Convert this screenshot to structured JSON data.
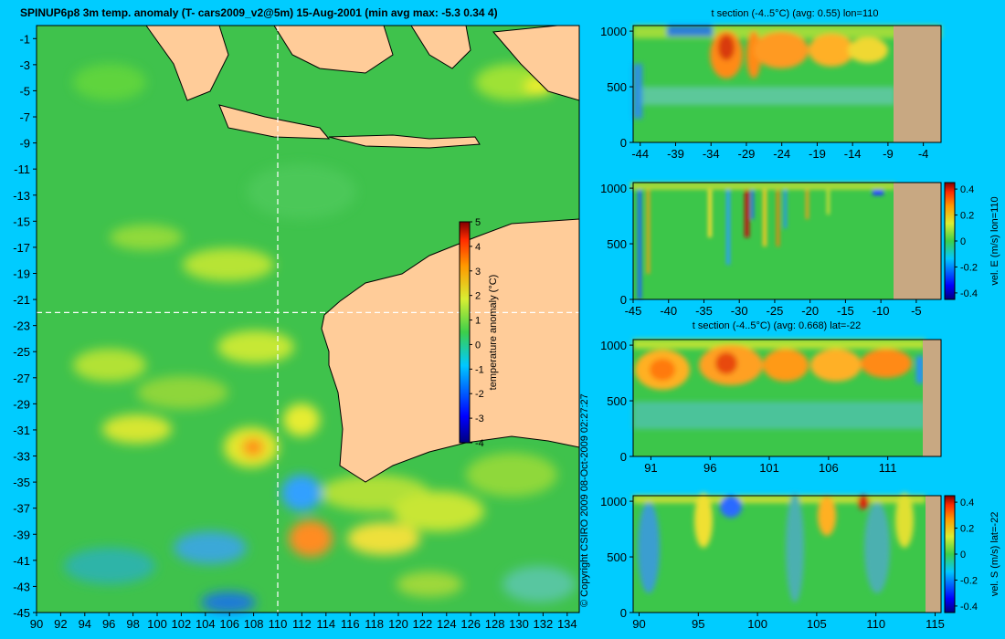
{
  "chart_data": [
    {
      "type": "heatmap",
      "title": "SPINUP6p8 3m temp. anomaly (T- cars2009_v2@5m) 15-Aug-2001 (min avg max: -5.3 0.34 4)",
      "x_ticks": [
        "90",
        "92",
        "94",
        "96",
        "98",
        "100",
        "102",
        "104",
        "106",
        "108",
        "110",
        "112",
        "114",
        "116",
        "118",
        "120",
        "122",
        "124",
        "126",
        "128",
        "130",
        "132",
        "134"
      ],
      "y_ticks": [
        "-1",
        "-3",
        "-5",
        "-7",
        "-9",
        "-11",
        "-13",
        "-15",
        "-17",
        "-19",
        "-21",
        "-23",
        "-25",
        "-27",
        "-29",
        "-31",
        "-33",
        "-35",
        "-37",
        "-39",
        "-41",
        "-43",
        "-45"
      ],
      "xlim": [
        90,
        135
      ],
      "ylim": [
        -45,
        0
      ],
      "section_lon": 110,
      "section_lat": -22,
      "colorbar": {
        "label": "temperature anomaly (°C)",
        "ticks": [
          "5",
          "4",
          "3",
          "2",
          "1",
          "0",
          "-1",
          "-2",
          "-3",
          "-4"
        ],
        "range": [
          -4,
          5
        ]
      },
      "copyright": "© Copyright CSIRO 2009  08-Oct-2009 02:27:27"
    },
    {
      "type": "heatmap",
      "title": "t section (-4..5°C) (avg: 0.55) lon=110",
      "x_ticks": [
        "-44",
        "-39",
        "-34",
        "-29",
        "-24",
        "-19",
        "-14",
        "-9",
        "-4"
      ],
      "y_ticks": [
        "0",
        "500",
        "1000"
      ],
      "xlim": [
        -45,
        -1.5
      ],
      "ylim": [
        1050,
        0
      ]
    },
    {
      "type": "heatmap",
      "title": "",
      "x_ticks": [
        "-45",
        "-40",
        "-35",
        "-30",
        "-25",
        "-20",
        "-15",
        "-10",
        "-5"
      ],
      "y_ticks": [
        "0",
        "500",
        "1000"
      ],
      "xlim": [
        -45,
        -1.5
      ],
      "ylim": [
        1050,
        0
      ],
      "colorbar": {
        "label": "vel. E (m/s) lon=110",
        "ticks": [
          "0.4",
          "0.2",
          "0",
          "-0.2",
          "-0.4"
        ],
        "range": [
          -0.45,
          0.45
        ]
      }
    },
    {
      "type": "heatmap",
      "title": "t section (-4..5°C) (avg: 0.668) lat=-22",
      "x_ticks": [
        "91",
        "96",
        "101",
        "106",
        "111"
      ],
      "y_ticks": [
        "0",
        "500",
        "1000"
      ],
      "xlim": [
        89.5,
        115.5
      ],
      "ylim": [
        1050,
        0
      ]
    },
    {
      "type": "heatmap",
      "title": "",
      "x_ticks": [
        "90",
        "95",
        "100",
        "105",
        "110",
        "115"
      ],
      "y_ticks": [
        "0",
        "500",
        "1000"
      ],
      "xlim": [
        89.5,
        115.5
      ],
      "ylim": [
        1050,
        0
      ],
      "colorbar": {
        "label": "vel. S (m/s) lat=-22",
        "ticks": [
          "0.4",
          "0.2",
          "0",
          "-0.2",
          "-0.4"
        ],
        "range": [
          -0.45,
          0.45
        ]
      }
    }
  ]
}
